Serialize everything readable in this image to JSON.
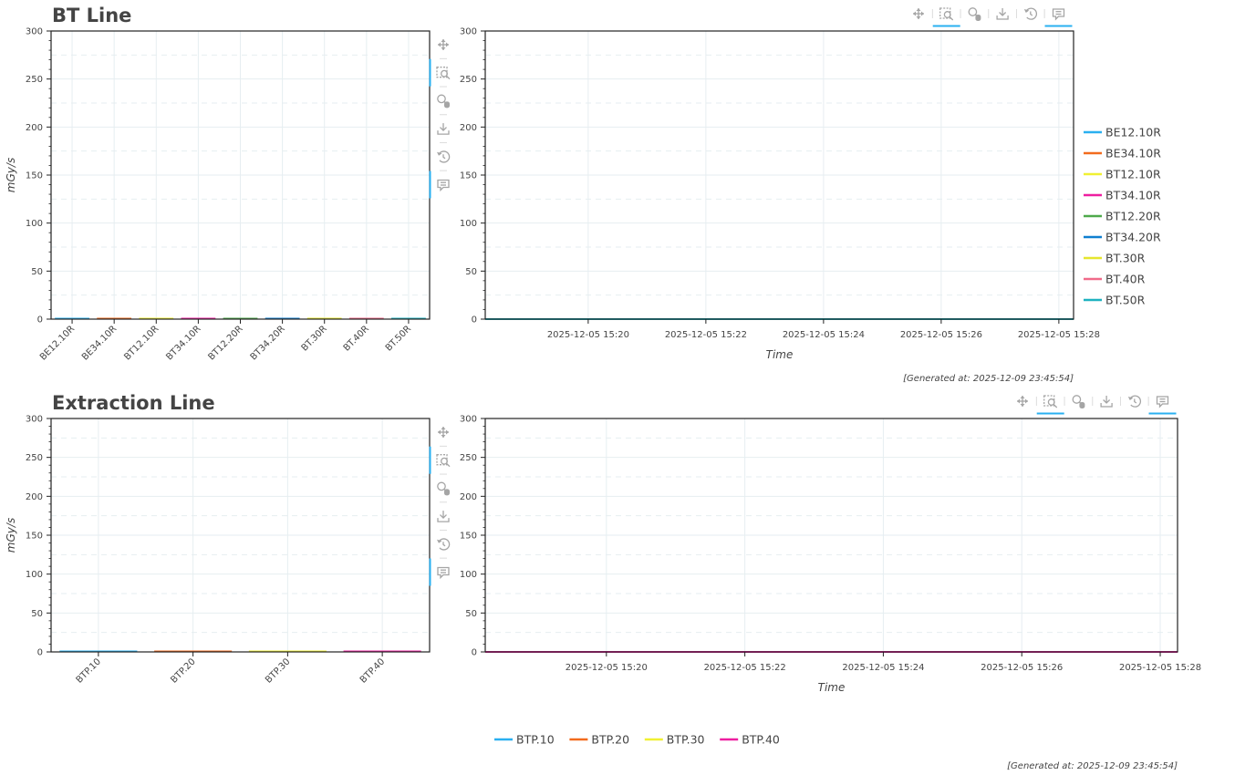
{
  "colors": {
    "palette": [
      "#2ab0f0",
      "#f26b1d",
      "#f0f032",
      "#ee1ea0",
      "#4fa94b",
      "#0f7fd0",
      "#e6e62e",
      "#f06a8a",
      "#1fb2c0"
    ],
    "grid": "#e6eef1",
    "axis": "#222222",
    "tool": "#a5a5a5",
    "tool_active": "#2ab0f0"
  },
  "toolbar": {
    "tools": [
      {
        "name": "pan",
        "icon": "pan-icon",
        "active": false
      },
      {
        "name": "box-zoom",
        "icon": "box-zoom-icon",
        "active": true
      },
      {
        "name": "wheel-zoom",
        "icon": "wheel-zoom-icon",
        "active": false
      },
      {
        "name": "save",
        "icon": "save-icon",
        "active": false
      },
      {
        "name": "reset",
        "icon": "reset-icon",
        "active": false
      },
      {
        "name": "hover",
        "icon": "hover-icon",
        "active": true
      }
    ]
  },
  "sections": [
    {
      "title": "BT Line",
      "generated": "[Generated at: 2025-12-09 23:45:54]",
      "legend_placement": "right",
      "chart_data": [
        {
          "type": "bar",
          "categories": [
            "BE12.10R",
            "BE34.10R",
            "BT12.10R",
            "BT34.10R",
            "BT12.20R",
            "BT34.20R",
            "BT.30R",
            "BT.40R",
            "BT.50R"
          ],
          "values": [
            0,
            0,
            0,
            0,
            0,
            0,
            0,
            0,
            0
          ],
          "title": "BT Line",
          "ylabel": "mGy/s",
          "xlabel": "",
          "ylim": [
            0,
            300
          ],
          "yticks": [
            "0",
            "50",
            "100",
            "150",
            "200",
            "250",
            "300"
          ],
          "grid": true
        },
        {
          "type": "line",
          "xlabel": "Time",
          "ylabel": "",
          "ylim": [
            0,
            300
          ],
          "xlim": [
            "2025-12-05 15:18:15",
            "2025-12-05 15:28:15"
          ],
          "yticks": [
            "0",
            "50",
            "100",
            "150",
            "200",
            "250",
            "300"
          ],
          "xticks": [
            "2025-12-05 15:20",
            "2025-12-05 15:22",
            "2025-12-05 15:24",
            "2025-12-05 15:26",
            "2025-12-05 15:28"
          ],
          "grid": true,
          "legend": "right",
          "series": [
            {
              "name": "BE12.10R",
              "x": [
                "2025-12-05 15:18:15",
                "2025-12-05 15:28:15"
              ],
              "values": [
                0,
                0
              ]
            },
            {
              "name": "BE34.10R",
              "x": [
                "2025-12-05 15:18:15",
                "2025-12-05 15:28:15"
              ],
              "values": [
                0,
                0
              ]
            },
            {
              "name": "BT12.10R",
              "x": [
                "2025-12-05 15:18:15",
                "2025-12-05 15:28:15"
              ],
              "values": [
                0,
                0
              ]
            },
            {
              "name": "BT34.10R",
              "x": [
                "2025-12-05 15:18:15",
                "2025-12-05 15:28:15"
              ],
              "values": [
                0,
                0
              ]
            },
            {
              "name": "BT12.20R",
              "x": [
                "2025-12-05 15:18:15",
                "2025-12-05 15:28:15"
              ],
              "values": [
                0,
                0
              ]
            },
            {
              "name": "BT34.20R",
              "x": [
                "2025-12-05 15:18:15",
                "2025-12-05 15:28:15"
              ],
              "values": [
                0,
                0
              ]
            },
            {
              "name": "BT.30R",
              "x": [
                "2025-12-05 15:18:15",
                "2025-12-05 15:28:15"
              ],
              "values": [
                0,
                0
              ]
            },
            {
              "name": "BT.40R",
              "x": [
                "2025-12-05 15:18:15",
                "2025-12-05 15:28:15"
              ],
              "values": [
                0,
                0
              ]
            },
            {
              "name": "BT.50R",
              "x": [
                "2025-12-05 15:18:15",
                "2025-12-05 15:28:15"
              ],
              "values": [
                0,
                0
              ]
            }
          ]
        }
      ]
    },
    {
      "title": "Extraction Line",
      "generated": "[Generated at: 2025-12-09 23:45:54]",
      "legend_placement": "bottom",
      "chart_data": [
        {
          "type": "bar",
          "categories": [
            "BTP.10",
            "BTP.20",
            "BTP.30",
            "BTP.40"
          ],
          "values": [
            0,
            0,
            0,
            0
          ],
          "title": "Extraction Line",
          "ylabel": "mGy/s",
          "xlabel": "",
          "ylim": [
            0,
            300
          ],
          "yticks": [
            "0",
            "50",
            "100",
            "150",
            "200",
            "250",
            "300"
          ],
          "grid": true
        },
        {
          "type": "line",
          "xlabel": "Time",
          "ylabel": "",
          "ylim": [
            0,
            300
          ],
          "xlim": [
            "2025-12-05 15:18:15",
            "2025-12-05 15:28:15"
          ],
          "yticks": [
            "0",
            "50",
            "100",
            "150",
            "200",
            "250",
            "300"
          ],
          "xticks": [
            "2025-12-05 15:20",
            "2025-12-05 15:22",
            "2025-12-05 15:24",
            "2025-12-05 15:26",
            "2025-12-05 15:28"
          ],
          "grid": true,
          "legend": "bottom",
          "series": [
            {
              "name": "BTP.10",
              "x": [
                "2025-12-05 15:18:15",
                "2025-12-05 15:28:15"
              ],
              "values": [
                0,
                0
              ]
            },
            {
              "name": "BTP.20",
              "x": [
                "2025-12-05 15:18:15",
                "2025-12-05 15:28:15"
              ],
              "values": [
                0,
                0
              ]
            },
            {
              "name": "BTP.30",
              "x": [
                "2025-12-05 15:18:15",
                "2025-12-05 15:28:15"
              ],
              "values": [
                0,
                0
              ]
            },
            {
              "name": "BTP.40",
              "x": [
                "2025-12-05 15:18:15",
                "2025-12-05 15:28:15"
              ],
              "values": [
                0,
                0
              ]
            }
          ]
        }
      ]
    }
  ]
}
